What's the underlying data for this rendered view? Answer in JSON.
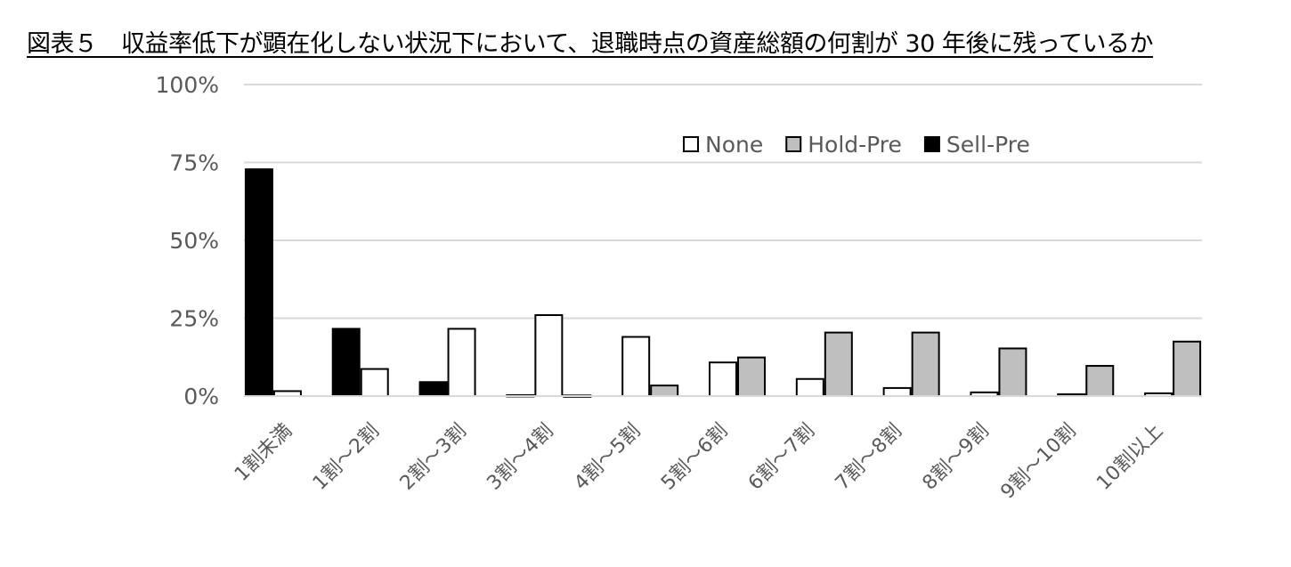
{
  "title": "図表５　収益率低下が顕在化しない状況下において、退職時点の資産総額の何割が 30 年後に残っているか",
  "chart_data": {
    "type": "bar",
    "title": "図表５　収益率低下が顕在化しない状況下において、退職時点の資産総額の何割が 30 年後に残っているか",
    "xlabel": "",
    "ylabel": "",
    "ylim": [
      0,
      1
    ],
    "yticks": [
      "0%",
      "25%",
      "50%",
      "75%",
      "100%"
    ],
    "grid": true,
    "legend_position": "top-right",
    "categories": [
      "1割未満",
      "1割～2割",
      "2割～3割",
      "3割～4割",
      "4割～5割",
      "5割～6割",
      "6割～7割",
      "7割～8割",
      "8割～9割",
      "9割～10割",
      "10割以上"
    ],
    "series": [
      {
        "name": "None",
        "color": "#ffffff",
        "values": [
          0.016,
          0.087,
          0.216,
          0.26,
          0.19,
          0.108,
          0.055,
          0.026,
          0.012,
          0.006,
          0.009
        ]
      },
      {
        "name": "Hold-Pre",
        "color": "#bfbfbf",
        "values": [
          0,
          0,
          0,
          0.002,
          0.034,
          0.124,
          0.204,
          0.204,
          0.153,
          0.097,
          0.175
        ]
      },
      {
        "name": "Sell-Pre",
        "color": "#000000",
        "values": [
          0.728,
          0.216,
          0.045,
          0.003,
          0.0,
          0,
          0,
          0,
          0,
          0,
          0
        ]
      }
    ]
  }
}
